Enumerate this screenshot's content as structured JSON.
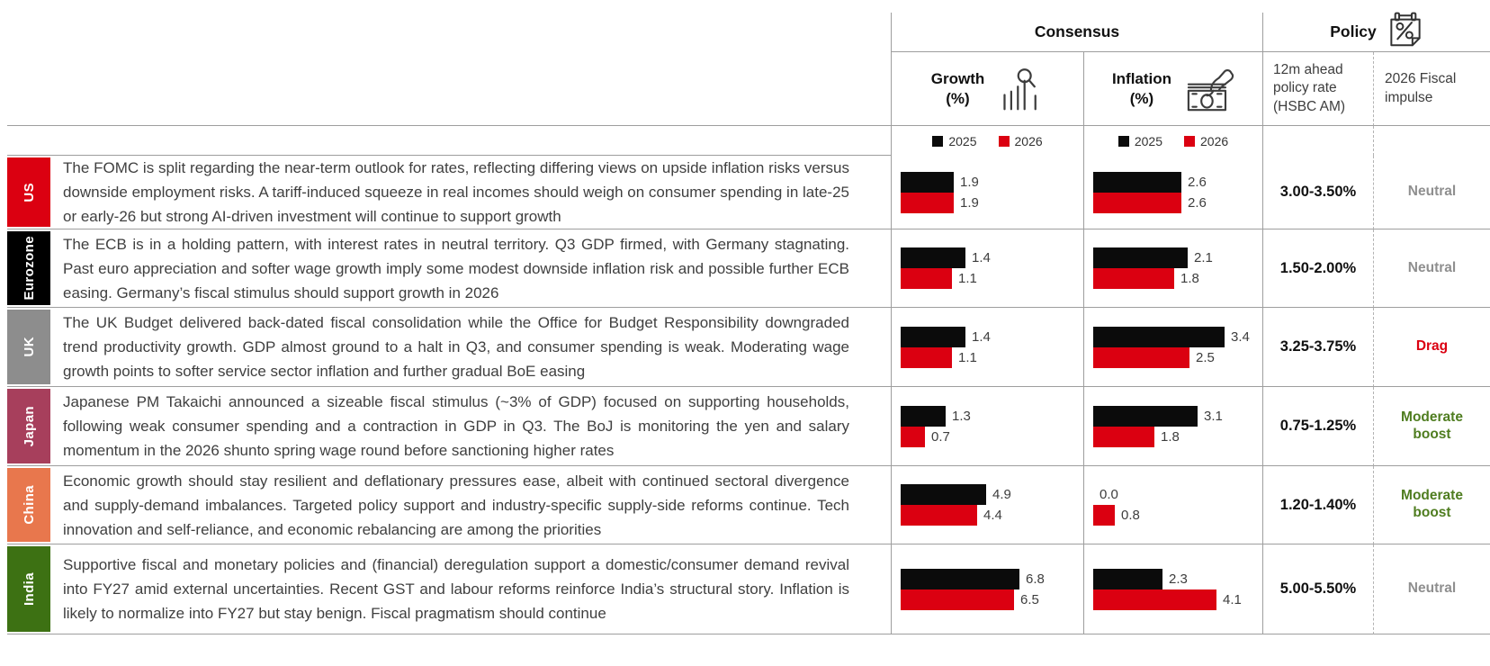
{
  "header": {
    "consensus": "Consensus",
    "policy": "Policy",
    "growth_title": "Growth",
    "growth_unit": "(%)",
    "inflation_title": "Inflation",
    "inflation_unit": "(%)",
    "policy_rate": "12m ahead policy rate (HSBC AM)",
    "fiscal": "2026 Fiscal impulse"
  },
  "legend": {
    "y2025": "2025",
    "y2026": "2026"
  },
  "colors": {
    "bar_2025": "#0b0b0b",
    "bar_2026": "#db0011",
    "neutral_text": "#8f8f8f",
    "drag_text": "#db0011",
    "boost_text": "#4f7d20",
    "grid_line": "#9e9e9e"
  },
  "rows": [
    {
      "region": "US",
      "region_color": "#db0011",
      "text": "The FOMC is split regarding the near-term outlook for rates, reflecting differing views on upside inflation risks versus downside employment risks. A tariff-induced squeeze in real incomes should weigh on consumer spending in late-25 or early-26 but strong AI-driven investment will continue to support growth",
      "growth": {
        "2025": "1.9",
        "2026": "1.9",
        "xmax": 5
      },
      "inflation": {
        "2025": "2.6",
        "2026": "2.6",
        "xmax": 4
      },
      "policy_rate": "3.00-3.50%",
      "fiscal": "Neutral",
      "fiscal_color": "#8f8f8f"
    },
    {
      "region": "Eurozone",
      "region_color": "#000000",
      "text": "The ECB is in a holding pattern, with interest rates in neutral territory. Q3 GDP firmed, with Germany stagnating. Past euro appreciation and softer wage growth imply some modest downside inflation risk and possible further ECB easing. Germany’s fiscal stimulus should support growth in 2026",
      "growth": {
        "2025": "1.4",
        "2026": "1.1",
        "xmax": 3
      },
      "inflation": {
        "2025": "2.1",
        "2026": "1.8",
        "xmax": 3
      },
      "policy_rate": "1.50-2.00%",
      "fiscal": "Neutral",
      "fiscal_color": "#8f8f8f"
    },
    {
      "region": "UK",
      "region_color": "#8d8d8d",
      "text": "The UK Budget delivered back-dated fiscal consolidation while the Office for Budget Responsibility downgraded trend productivity growth. GDP almost ground to a halt in Q3, and consumer spending is weak. Moderating wage growth points to softer service sector inflation and further gradual BoE easing",
      "growth": {
        "2025": "1.4",
        "2026": "1.1",
        "xmax": 3
      },
      "inflation": {
        "2025": "3.4",
        "2026": "2.5",
        "xmax": 3.5
      },
      "policy_rate": "3.25-3.75%",
      "fiscal": "Drag",
      "fiscal_color": "#db0011"
    },
    {
      "region": "Japan",
      "region_color": "#a73f5c",
      "text": "Japanese PM Takaichi announced a sizeable fiscal stimulus (~3% of GDP) focused on supporting households, following weak consumer spending and a contraction in GDP in Q3. The BoJ is monitoring the yen and salary momentum in the 2026 shunto spring wage round before sanctioning higher rates",
      "growth": {
        "2025": "1.3",
        "2026": "0.7",
        "xmax": 4
      },
      "inflation": {
        "2025": "3.1",
        "2026": "1.8",
        "xmax": 4
      },
      "policy_rate": "0.75-1.25%",
      "fiscal": "Moderate boost",
      "fiscal_color": "#4f7d20"
    },
    {
      "region": "China",
      "region_color": "#e8774d",
      "text": "Economic growth should stay resilient and deflationary pressures ease, albeit with continued sectoral divergence and supply-demand imbalances. Targeted policy support and industry-specific supply-side reforms continue. Tech innovation and self-reliance, and economic rebalancing are among the priorities",
      "growth": {
        "2025": "4.9",
        "2026": "4.4",
        "xmax": 8
      },
      "inflation": {
        "2025": "0.0",
        "2026": "0.8",
        "xmax": 5
      },
      "policy_rate": "1.20-1.40%",
      "fiscal": "Moderate boost",
      "fiscal_color": "#4f7d20"
    },
    {
      "region": "India",
      "region_color": "#3d7113",
      "text": "Supportive fiscal and monetary policies and (financial) deregulation support a domestic/consumer demand revival into FY27 amid external uncertainties. Recent GST and labour reforms reinforce India’s structural story. Inflation is likely to normalize into FY27 but stay benign. Fiscal pragmatism should continue",
      "growth": {
        "2025": "6.8",
        "2026": "6.5",
        "xmax": 8
      },
      "inflation": {
        "2025": "2.3",
        "2026": "4.1",
        "xmax": 4.5
      },
      "policy_rate": "5.00-5.50%",
      "fiscal": "Neutral",
      "fiscal_color": "#8f8f8f"
    }
  ],
  "chart_data": [
    {
      "type": "bar",
      "orientation": "horizontal",
      "title": "Consensus Growth (%)",
      "categories": [
        "US",
        "Eurozone",
        "UK",
        "Japan",
        "China",
        "India"
      ],
      "series": [
        {
          "name": "2025",
          "values": [
            1.9,
            1.4,
            1.4,
            1.3,
            4.9,
            6.8
          ]
        },
        {
          "name": "2026",
          "values": [
            1.9,
            1.1,
            1.1,
            0.7,
            4.4,
            6.5
          ]
        }
      ],
      "legend": [
        "2025",
        "2026"
      ],
      "legend_position": "top"
    },
    {
      "type": "bar",
      "orientation": "horizontal",
      "title": "Consensus Inflation (%)",
      "categories": [
        "US",
        "Eurozone",
        "UK",
        "Japan",
        "China",
        "India"
      ],
      "series": [
        {
          "name": "2025",
          "values": [
            2.6,
            2.1,
            3.4,
            3.1,
            0.0,
            2.3
          ]
        },
        {
          "name": "2026",
          "values": [
            2.6,
            1.8,
            2.5,
            1.8,
            0.8,
            4.1
          ]
        }
      ],
      "legend": [
        "2025",
        "2026"
      ],
      "legend_position": "top"
    }
  ]
}
